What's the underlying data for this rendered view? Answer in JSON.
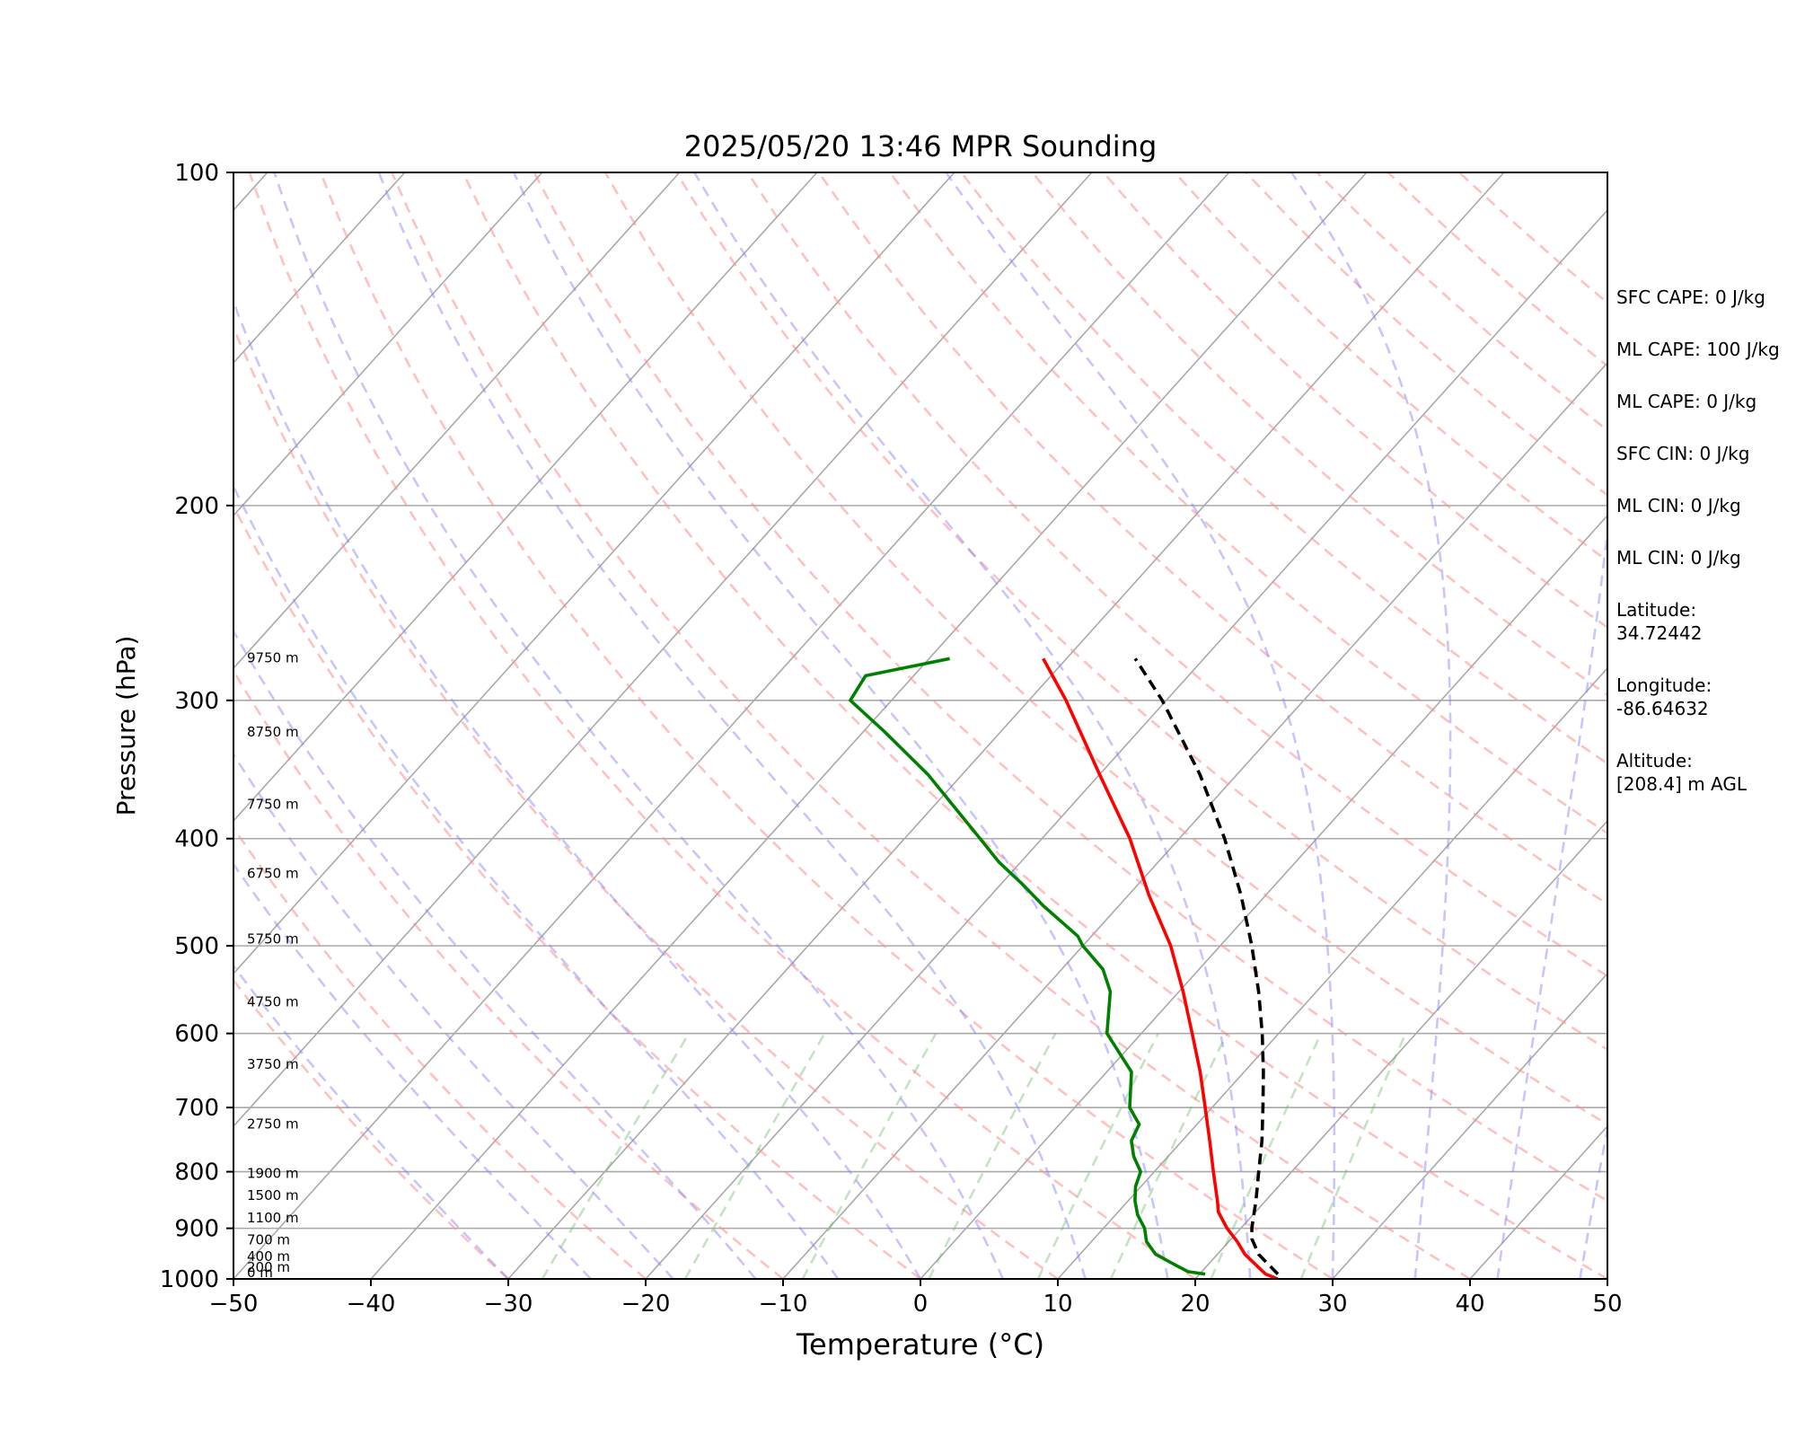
{
  "chart_data": {
    "type": "line",
    "title": "2025/05/20 13:46 MPR Sounding",
    "xlabel": "Temperature (°C)",
    "ylabel": "Pressure (hPa)",
    "xlim": [
      -50,
      50
    ],
    "ylim": [
      1000,
      100
    ],
    "y_scale": "log",
    "skew": "skew-T log-p",
    "x_ticks": [
      "−50",
      "−40",
      "−30",
      "−20",
      "−10",
      "0",
      "10",
      "20",
      "30",
      "40",
      "50"
    ],
    "x_tick_values": [
      -50,
      -40,
      -30,
      -20,
      -10,
      0,
      10,
      20,
      30,
      40,
      50
    ],
    "y_ticks": [
      "100",
      "200",
      "300",
      "400",
      "500",
      "600",
      "700",
      "800",
      "900",
      "1000"
    ],
    "y_tick_values": [
      100,
      200,
      300,
      400,
      500,
      600,
      700,
      800,
      900,
      1000
    ],
    "grid": true,
    "height_labels": [
      {
        "text": "0 m",
        "p": 1000
      },
      {
        "text": "200 m",
        "p": 978
      },
      {
        "text": "400 m",
        "p": 956
      },
      {
        "text": "700 m",
        "p": 924
      },
      {
        "text": "1100 m",
        "p": 882
      },
      {
        "text": "1500 m",
        "p": 842
      },
      {
        "text": "1900 m",
        "p": 804
      },
      {
        "text": "2750 m",
        "p": 726
      },
      {
        "text": "3750 m",
        "p": 641
      },
      {
        "text": "4750 m",
        "p": 563
      },
      {
        "text": "5750 m",
        "p": 494
      },
      {
        "text": "6750 m",
        "p": 431
      },
      {
        "text": "7750 m",
        "p": 373
      },
      {
        "text": "8750 m",
        "p": 321
      },
      {
        "text": "9750 m",
        "p": 275
      }
    ],
    "series": [
      {
        "color": "#ff0000",
        "style": "solid",
        "points": [
          [
            1000,
            26.0
          ],
          [
            990,
            24.8
          ],
          [
            950,
            22.0
          ],
          [
            925,
            20.6
          ],
          [
            900,
            19.0
          ],
          [
            870,
            17.3
          ],
          [
            850,
            16.5
          ],
          [
            800,
            14.3
          ],
          [
            750,
            12.0
          ],
          [
            700,
            9.5
          ],
          [
            650,
            6.8
          ],
          [
            600,
            3.7
          ],
          [
            550,
            0.3
          ],
          [
            500,
            -3.6
          ],
          [
            450,
            -8.5
          ],
          [
            400,
            -13.6
          ],
          [
            350,
            -20.0
          ],
          [
            300,
            -27.3
          ],
          [
            275,
            -31.7
          ]
        ]
      },
      {
        "color": "#008000",
        "style": "solid",
        "points": [
          [
            990,
            20.4
          ],
          [
            985,
            19.0
          ],
          [
            970,
            17.5
          ],
          [
            950,
            15.5
          ],
          [
            925,
            14.0
          ],
          [
            900,
            13.0
          ],
          [
            875,
            11.6
          ],
          [
            850,
            10.5
          ],
          [
            825,
            9.6
          ],
          [
            800,
            9.0
          ],
          [
            775,
            7.5
          ],
          [
            750,
            6.3
          ],
          [
            725,
            5.8
          ],
          [
            700,
            4.0
          ],
          [
            650,
            1.8
          ],
          [
            600,
            -2.5
          ],
          [
            550,
            -5.0
          ],
          [
            525,
            -7.0
          ],
          [
            500,
            -10.0
          ],
          [
            490,
            -11.0
          ],
          [
            460,
            -15.5
          ],
          [
            440,
            -18.4
          ],
          [
            420,
            -21.6
          ],
          [
            400,
            -24.5
          ],
          [
            350,
            -32.5
          ],
          [
            320,
            -38.5
          ],
          [
            300,
            -43.0
          ],
          [
            285,
            -43.5
          ],
          [
            275,
            -38.5
          ]
        ]
      },
      {
        "color": "#000000",
        "style": "dashed",
        "points": [
          [
            990,
            25.7
          ],
          [
            950,
            23.0
          ],
          [
            920,
            21.5
          ],
          [
            900,
            20.8
          ],
          [
            850,
            19.3
          ],
          [
            800,
            17.6
          ],
          [
            750,
            15.8
          ],
          [
            700,
            13.7
          ],
          [
            650,
            11.4
          ],
          [
            600,
            8.8
          ],
          [
            550,
            5.8
          ],
          [
            500,
            2.3
          ],
          [
            450,
            -1.8
          ],
          [
            400,
            -6.7
          ],
          [
            350,
            -12.7
          ],
          [
            300,
            -20.3
          ],
          [
            275,
            -25.0
          ]
        ]
      }
    ]
  },
  "side_panel": {
    "sfc_cape": "SFC CAPE: 0 J/kg",
    "ml_cape_1": "ML CAPE: 100 J/kg",
    "ml_cape_2": "ML CAPE: 0 J/kg",
    "sfc_cin": "SFC CIN: 0 J/kg",
    "ml_cin_1": "ML CIN: 0 J/kg",
    "ml_cin_2": "ML CIN: 0 J/kg",
    "latitude_label": "Latitude:",
    "latitude_value": "34.72442",
    "longitude_label": "Longitude:",
    "longitude_value": "-86.64632",
    "altitude_label": "Altitude:",
    "altitude_value": "[208.4] m AGL"
  },
  "colors": {
    "dry_adiabat": "#ff8c8c",
    "moist_adiabat": "#8080ff",
    "mixing_ratio": "#6ab86a",
    "isotherm": "#a9a9a9",
    "isobar": "#a9a9a9"
  }
}
